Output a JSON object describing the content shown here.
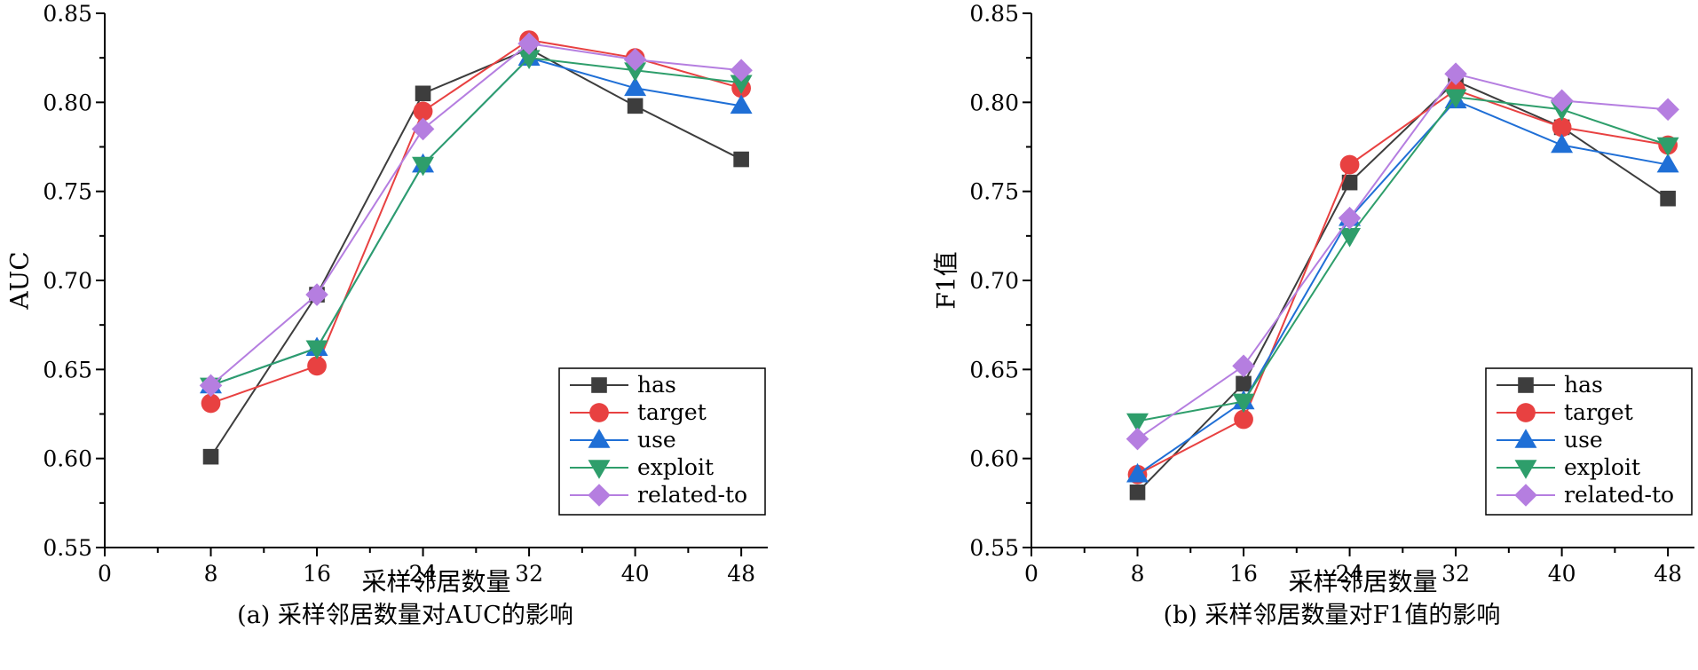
{
  "chart_data": [
    {
      "type": "line",
      "caption": "(a) 采样邻居数量对AUC的影响",
      "xlabel": "采样邻居数量",
      "ylabel": "AUC",
      "xlim": [
        0,
        50
      ],
      "ylim": [
        0.55,
        0.85
      ],
      "xticks": [
        0,
        8,
        16,
        24,
        32,
        40,
        48
      ],
      "yticks": [
        0.55,
        0.6,
        0.65,
        0.7,
        0.75,
        0.8,
        0.85
      ],
      "x": [
        8,
        16,
        24,
        32,
        40,
        48
      ],
      "legend_position": "bottom-right",
      "series": [
        {
          "name": "has",
          "color": "#3d3d3d",
          "marker": "square",
          "values": [
            0.601,
            0.692,
            0.805,
            0.83,
            0.798,
            0.768
          ]
        },
        {
          "name": "target",
          "color": "#e84141",
          "marker": "circle",
          "values": [
            0.631,
            0.652,
            0.795,
            0.835,
            0.825,
            0.808
          ]
        },
        {
          "name": "use",
          "color": "#1f6fd6",
          "marker": "triangle-up",
          "values": [
            0.641,
            0.662,
            0.765,
            0.825,
            0.808,
            0.798
          ]
        },
        {
          "name": "exploit",
          "color": "#2e9e6b",
          "marker": "triangle-down",
          "values": [
            0.641,
            0.662,
            0.765,
            0.825,
            0.818,
            0.811
          ]
        },
        {
          "name": "related-to",
          "color": "#b57ee0",
          "marker": "diamond",
          "values": [
            0.641,
            0.692,
            0.785,
            0.833,
            0.824,
            0.818
          ]
        }
      ]
    },
    {
      "type": "line",
      "caption": "(b) 采样邻居数量对F1值的影响",
      "xlabel": "采样邻居数量",
      "ylabel": "F1值",
      "xlim": [
        0,
        50
      ],
      "ylim": [
        0.55,
        0.85
      ],
      "xticks": [
        0,
        8,
        16,
        24,
        32,
        40,
        48
      ],
      "yticks": [
        0.55,
        0.6,
        0.65,
        0.7,
        0.75,
        0.8,
        0.85
      ],
      "x": [
        8,
        16,
        24,
        32,
        40,
        48
      ],
      "legend_position": "bottom-right",
      "series": [
        {
          "name": "has",
          "color": "#3d3d3d",
          "marker": "square",
          "values": [
            0.581,
            0.642,
            0.755,
            0.812,
            0.786,
            0.746
          ]
        },
        {
          "name": "target",
          "color": "#e84141",
          "marker": "circle",
          "values": [
            0.591,
            0.622,
            0.765,
            0.807,
            0.786,
            0.776
          ]
        },
        {
          "name": "use",
          "color": "#1f6fd6",
          "marker": "triangle-up",
          "values": [
            0.591,
            0.632,
            0.735,
            0.801,
            0.776,
            0.765
          ]
        },
        {
          "name": "exploit",
          "color": "#2e9e6b",
          "marker": "triangle-down",
          "values": [
            0.621,
            0.632,
            0.725,
            0.803,
            0.796,
            0.776
          ]
        },
        {
          "name": "related-to",
          "color": "#b57ee0",
          "marker": "diamond",
          "values": [
            0.611,
            0.652,
            0.735,
            0.816,
            0.801,
            0.796
          ]
        }
      ]
    }
  ]
}
